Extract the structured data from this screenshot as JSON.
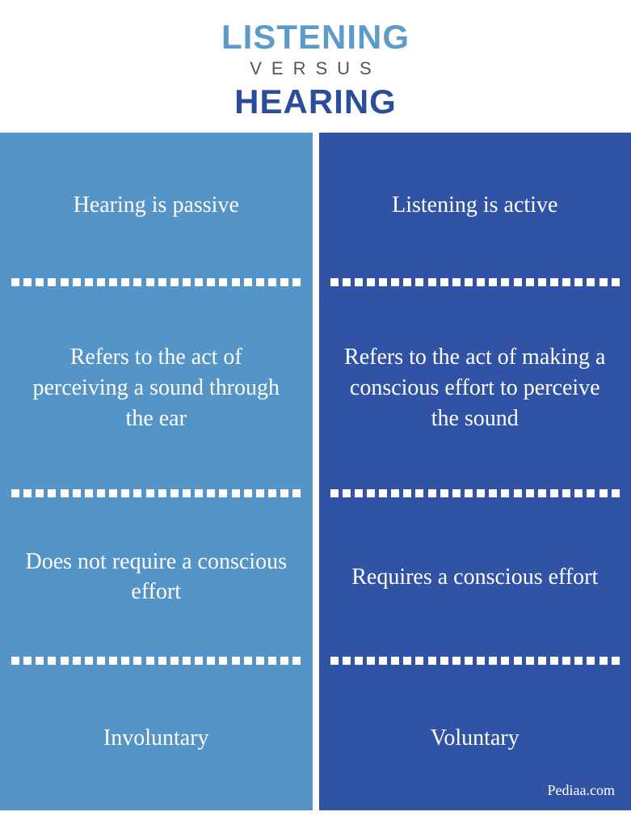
{
  "header": {
    "listening": "LISTENING",
    "versus": "VERSUS",
    "hearing": "HEARING",
    "listening_color": "#5f9bc9",
    "hearing_color": "#2a4e9b",
    "versus_color": "#555555",
    "listening_fontsize": 42,
    "versus_fontsize": 22,
    "hearing_fontsize": 42
  },
  "columns": {
    "left": {
      "bg_color": "#5494c7",
      "rows": [
        "Hearing is passive",
        "Refers to the act of perceiving a sound through the ear",
        "Does not require a conscious effort",
        "Involuntary"
      ]
    },
    "right": {
      "bg_color": "#3153a6",
      "rows": [
        "Listening is active",
        "Refers to the act of making a conscious effort to perceive the sound",
        "Requires a conscious effort",
        "Voluntary"
      ]
    },
    "text_color": "#ffffff",
    "cell_fontsize": 28,
    "divider_dot_color": "#ffffff",
    "divider_dot_count": 24
  },
  "source": {
    "text": "Pediaa.com",
    "fontsize": 18
  }
}
